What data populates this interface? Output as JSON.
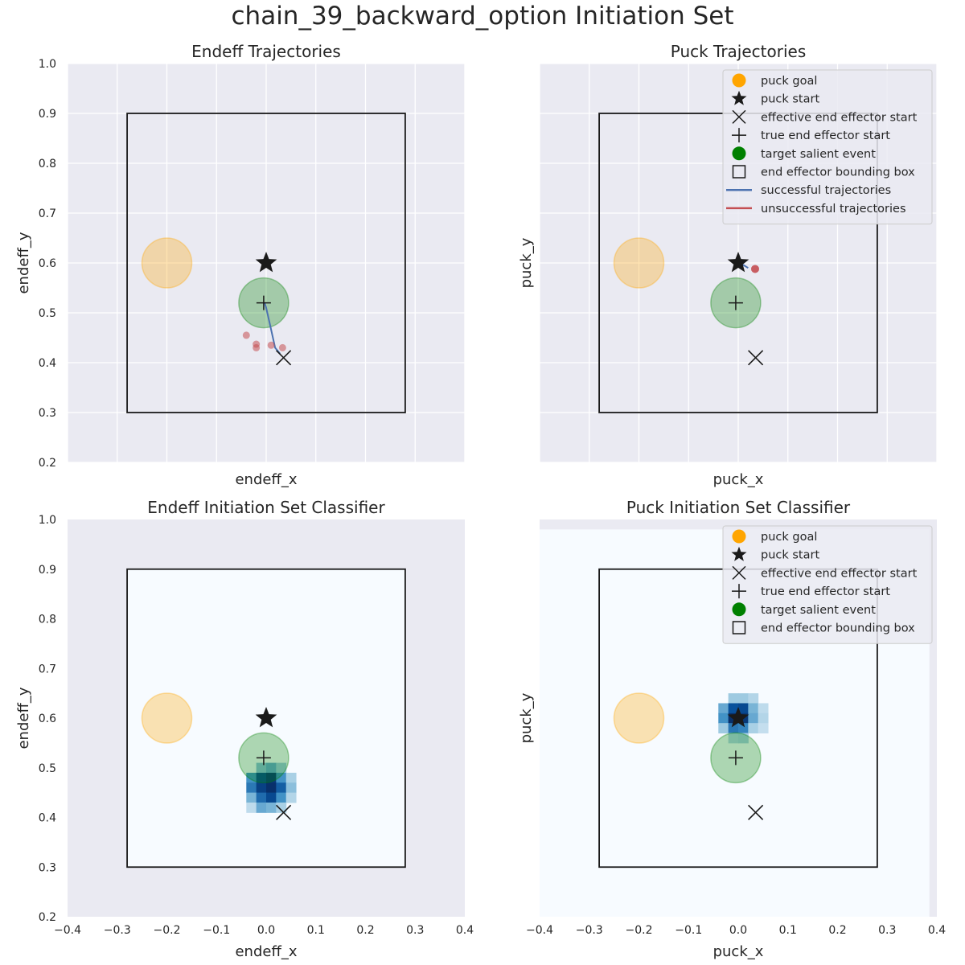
{
  "figure": {
    "title": "chain_39_backward_option Initiation Set"
  },
  "chart_data": [
    {
      "type": "scatter",
      "title": "Endeff Trajectories",
      "xlabel": "endeff_x",
      "ylabel": "endeff_y",
      "xlim": [
        -0.4,
        0.4
      ],
      "ylim": [
        0.2,
        1.0
      ],
      "x_ticks_shown": false,
      "y_ticks_shown": true,
      "grid": true,
      "legend": null,
      "puck_goal": [
        -0.2,
        0.6
      ],
      "puck_start": [
        0.0,
        0.6
      ],
      "effective_end_effector_start": [
        0.035,
        0.41
      ],
      "true_end_effector_start": [
        -0.005,
        0.52
      ],
      "target_salient_event": [
        -0.005,
        0.52
      ],
      "bounding_box": {
        "x": [
          -0.28,
          0.28
        ],
        "y": [
          0.3,
          0.9
        ]
      },
      "successful_trajectories": [
        [
          [
            0.028,
            0.418
          ],
          [
            0.018,
            0.43
          ],
          [
            0.008,
            0.475
          ],
          [
            0.0,
            0.51
          ],
          [
            -0.003,
            0.52
          ]
        ]
      ],
      "unsuccessful_endpoints": [
        [
          -0.04,
          0.455
        ],
        [
          -0.02,
          0.437
        ],
        [
          -0.02,
          0.43
        ],
        [
          0.01,
          0.435
        ],
        [
          0.033,
          0.43
        ]
      ]
    },
    {
      "type": "scatter",
      "title": "Puck Trajectories",
      "xlabel": "puck_x",
      "ylabel": "puck_y",
      "xlim": [
        -0.4,
        0.4
      ],
      "ylim": [
        0.2,
        1.0
      ],
      "x_ticks_shown": false,
      "y_ticks_shown": false,
      "grid": true,
      "legend": "top-right",
      "puck_goal": [
        -0.2,
        0.6
      ],
      "puck_start": [
        0.0,
        0.6
      ],
      "effective_end_effector_start": [
        0.035,
        0.41
      ],
      "true_end_effector_start": [
        -0.005,
        0.52
      ],
      "target_salient_event": [
        -0.005,
        0.52
      ],
      "bounding_box": {
        "x": [
          -0.28,
          0.28
        ],
        "y": [
          0.3,
          0.9
        ]
      },
      "successful_trajectories": [
        [
          [
            0.0,
            0.6
          ],
          [
            0.012,
            0.595
          ],
          [
            0.02,
            0.59
          ]
        ]
      ],
      "unsuccessful_endpoints": [
        [
          0.034,
          0.588
        ]
      ]
    },
    {
      "type": "heatmap",
      "title": "Endeff Initiation Set Classifier",
      "xlabel": "endeff_x",
      "ylabel": "endeff_y",
      "xlim": [
        -0.4,
        0.4
      ],
      "ylim": [
        0.2,
        1.0
      ],
      "x_ticks_shown": true,
      "y_ticks_shown": true,
      "grid": false,
      "legend": null,
      "puck_goal": [
        -0.2,
        0.6
      ],
      "puck_start": [
        0.0,
        0.6
      ],
      "effective_end_effector_start": [
        0.035,
        0.41
      ],
      "true_end_effector_start": [
        -0.005,
        0.52
      ],
      "target_salient_event": [
        -0.005,
        0.52
      ],
      "bounding_box": {
        "x": [
          -0.28,
          0.28
        ],
        "y": [
          0.3,
          0.9
        ]
      },
      "heatmap_region": {
        "x": [
          -0.28,
          0.28
        ],
        "y": [
          0.3,
          0.9
        ]
      },
      "heat_cells": {
        "cell_size": 0.02,
        "cells": [
          [
            -0.01,
            0.5,
            0.35
          ],
          [
            0.01,
            0.5,
            0.45
          ],
          [
            0.03,
            0.5,
            0.3
          ],
          [
            -0.03,
            0.48,
            0.55
          ],
          [
            -0.01,
            0.48,
            0.85
          ],
          [
            0.01,
            0.48,
            0.95
          ],
          [
            0.03,
            0.48,
            0.55
          ],
          [
            0.05,
            0.48,
            0.25
          ],
          [
            -0.03,
            0.46,
            0.65
          ],
          [
            -0.01,
            0.46,
            0.9
          ],
          [
            0.01,
            0.46,
            1.0
          ],
          [
            0.03,
            0.46,
            0.75
          ],
          [
            0.05,
            0.46,
            0.35
          ],
          [
            -0.03,
            0.44,
            0.4
          ],
          [
            -0.01,
            0.44,
            0.7
          ],
          [
            0.01,
            0.44,
            0.85
          ],
          [
            0.03,
            0.44,
            0.55
          ],
          [
            0.05,
            0.44,
            0.2
          ],
          [
            -0.03,
            0.42,
            0.15
          ],
          [
            -0.01,
            0.42,
            0.45
          ],
          [
            0.01,
            0.42,
            0.4
          ],
          [
            0.03,
            0.42,
            0.25
          ]
        ]
      }
    },
    {
      "type": "heatmap",
      "title": "Puck Initiation Set Classifier",
      "xlabel": "puck_x",
      "ylabel": "puck_y",
      "xlim": [
        -0.4,
        0.4
      ],
      "ylim": [
        0.2,
        1.0
      ],
      "x_ticks_shown": true,
      "y_ticks_shown": false,
      "grid": false,
      "legend": "top-right",
      "puck_goal": [
        -0.2,
        0.6
      ],
      "puck_start": [
        0.0,
        0.6
      ],
      "effective_end_effector_start": [
        0.035,
        0.41
      ],
      "true_end_effector_start": [
        -0.005,
        0.52
      ],
      "target_salient_event": [
        -0.005,
        0.52
      ],
      "bounding_box": {
        "x": [
          -0.28,
          0.28
        ],
        "y": [
          0.3,
          0.9
        ]
      },
      "heatmap_region": {
        "x": [
          -0.4,
          0.385
        ],
        "y": [
          0.2,
          0.98
        ]
      },
      "heat_cells": {
        "cell_size": 0.02,
        "cells": [
          [
            -0.01,
            0.64,
            0.3
          ],
          [
            0.01,
            0.64,
            0.3
          ],
          [
            0.03,
            0.64,
            0.2
          ],
          [
            -0.03,
            0.62,
            0.45
          ],
          [
            -0.01,
            0.62,
            0.8
          ],
          [
            0.01,
            0.62,
            0.85
          ],
          [
            0.03,
            0.62,
            0.4
          ],
          [
            0.05,
            0.62,
            0.15
          ],
          [
            -0.03,
            0.6,
            0.55
          ],
          [
            -0.01,
            0.6,
            1.0
          ],
          [
            0.01,
            0.6,
            0.95
          ],
          [
            0.03,
            0.6,
            0.45
          ],
          [
            0.05,
            0.6,
            0.2
          ],
          [
            -0.03,
            0.58,
            0.3
          ],
          [
            -0.01,
            0.58,
            0.65
          ],
          [
            0.01,
            0.58,
            0.6
          ],
          [
            0.03,
            0.58,
            0.25
          ],
          [
            0.05,
            0.58,
            0.12
          ],
          [
            -0.01,
            0.56,
            0.2
          ],
          [
            0.01,
            0.56,
            0.25
          ]
        ]
      }
    }
  ],
  "ticks": {
    "x": [
      "−0.4",
      "−0.3",
      "−0.2",
      "−0.1",
      "0.0",
      "0.1",
      "0.2",
      "0.3",
      "0.4"
    ],
    "y": [
      "0.2",
      "0.3",
      "0.4",
      "0.5",
      "0.6",
      "0.7",
      "0.8",
      "0.9",
      "1.0"
    ]
  },
  "legend_entries": [
    {
      "label": "puck goal",
      "marker": "circle",
      "color": "#ffa500"
    },
    {
      "label": "puck start",
      "marker": "star",
      "color": "#1a1a1a"
    },
    {
      "label": "effective end effector start",
      "marker": "x",
      "color": "#1a1a1a"
    },
    {
      "label": "true end effector start",
      "marker": "plus",
      "color": "#1a1a1a"
    },
    {
      "label": "target salient event",
      "marker": "circle",
      "color": "#008000"
    },
    {
      "label": "end effector bounding box",
      "marker": "square",
      "color": "#1a1a1a"
    },
    {
      "label": "successful trajectories",
      "marker": "line",
      "color": "#4c72b0"
    },
    {
      "label": "unsuccessful trajectories",
      "marker": "line",
      "color": "#c44e52"
    }
  ],
  "colors": {
    "axes_bg": "#eaeaf2",
    "grid": "#ffffff",
    "goal": "#ffa500",
    "salient": "#008000",
    "success": "#4c72b0",
    "fail": "#c44e52",
    "heat_low": "#f7fbff",
    "marker": "#1a1a1a"
  }
}
